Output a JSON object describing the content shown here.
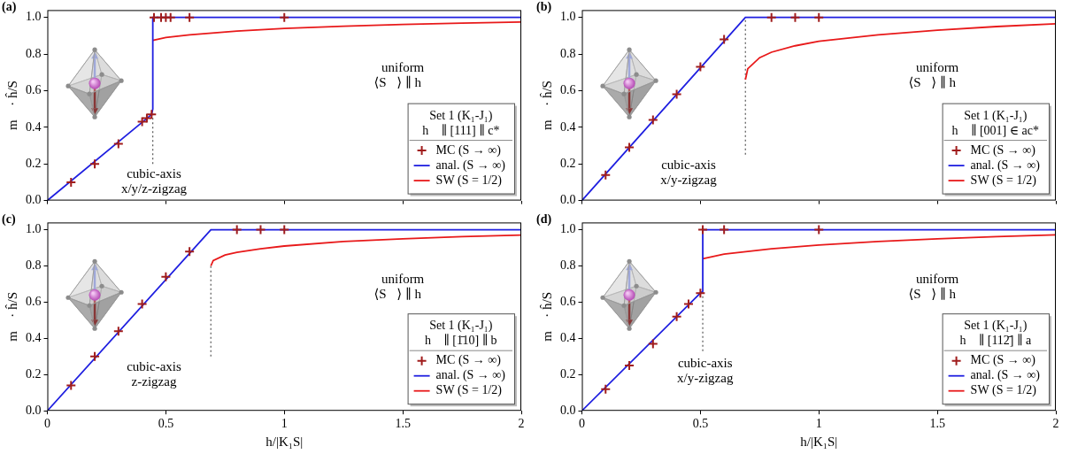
{
  "chart_data": [
    {
      "panel": "(a)",
      "type": "line",
      "ylabel": "m⃗ · ĥ/S",
      "xlim": [
        0,
        2
      ],
      "xticks": [
        0,
        0.5,
        1,
        1.5,
        2
      ],
      "ylim": [
        0,
        1.04
      ],
      "yticks": [
        {
          "value": 0,
          "label": "0.0"
        },
        0.2,
        0.4,
        0.6,
        0.8,
        {
          "value": 1,
          "label": "1.0"
        }
      ],
      "grid": false,
      "tick_labels": "y",
      "legend": "lower right",
      "legend_title": [
        "Set 1 (K₁-J₁)",
        "h⃗ ∥ [111] ∥ c*"
      ],
      "annotations": [
        [
          "uniform",
          "⟨S⃗⟩ ∥ h⃗"
        ],
        [
          "cubic-axis",
          "x/y/z-zigzag"
        ]
      ],
      "series": [
        {
          "name": "MC (S → ∞)",
          "type": "scatter",
          "marker": "cross",
          "color": "#a01c1c",
          "x": [
            0.1,
            0.2,
            0.3,
            0.4,
            0.42,
            0.44,
            0.45,
            0.48,
            0.5,
            0.52,
            0.6,
            1.0
          ],
          "values": [
            0.1,
            0.2,
            0.31,
            0.43,
            0.45,
            0.47,
            1,
            1,
            1,
            1,
            1,
            1
          ]
        },
        {
          "name": "anal. (S → ∞)",
          "type": "line",
          "line_style": "solid",
          "color": "#1f1fe0",
          "x": [
            0,
            0.44,
            0.445,
            0.445,
            2
          ],
          "values": [
            0,
            0.47,
            0.5,
            1,
            1
          ]
        },
        {
          "name": "SW (S = 1/2)",
          "type": "line",
          "line_style": "solid",
          "color": "#e8191a",
          "x": [
            0.445,
            0.5,
            0.6,
            0.8,
            1,
            1.25,
            1.5,
            1.75,
            2
          ],
          "values": [
            0.875,
            0.89,
            0.905,
            0.925,
            0.94,
            0.952,
            0.962,
            0.969,
            0.975
          ]
        },
        {
          "type": "line",
          "line_style": "dotted",
          "color": "#555555",
          "x": [
            0.445,
            0.445
          ],
          "values": [
            0.2,
            0.47
          ]
        }
      ]
    },
    {
      "panel": "(b)",
      "type": "line",
      "ylabel": "m⃗ · ĥ/S",
      "xlim": [
        0,
        2
      ],
      "xticks": [
        0,
        0.5,
        1,
        1.5,
        2
      ],
      "ylim": [
        0,
        1.04
      ],
      "yticks": [
        {
          "value": 0,
          "label": "0.0"
        },
        0.2,
        0.4,
        0.6,
        0.8,
        {
          "value": 1,
          "label": "1.0"
        }
      ],
      "grid": false,
      "tick_labels": "y",
      "legend": "lower right",
      "legend_title": [
        "Set 1 (K₁-J₁)",
        "h⃗ ∥ [001] ∈ ac*"
      ],
      "annotations": [
        [
          "uniform",
          "⟨S⃗⟩ ∥ h⃗"
        ],
        [
          "cubic-axis",
          "x/y-zigzag"
        ]
      ],
      "series": [
        {
          "name": "MC (S → ∞)",
          "type": "scatter",
          "marker": "cross",
          "color": "#a01c1c",
          "x": [
            0.1,
            0.2,
            0.3,
            0.4,
            0.5,
            0.6,
            0.8,
            0.9,
            1.0
          ],
          "values": [
            0.14,
            0.29,
            0.44,
            0.58,
            0.73,
            0.88,
            1,
            1,
            1
          ]
        },
        {
          "name": "anal. (S → ∞)",
          "type": "line",
          "line_style": "solid",
          "color": "#1f1fe0",
          "x": [
            0,
            0.69,
            2
          ],
          "values": [
            0,
            1,
            1
          ]
        },
        {
          "name": "SW (S = 1/2)",
          "type": "line",
          "line_style": "solid",
          "color": "#e8191a",
          "x": [
            0.69,
            0.7,
            0.75,
            0.8,
            0.9,
            1,
            1.25,
            1.5,
            1.75,
            2
          ],
          "values": [
            0.66,
            0.72,
            0.78,
            0.81,
            0.845,
            0.87,
            0.905,
            0.93,
            0.95,
            0.965
          ]
        },
        {
          "type": "line",
          "line_style": "dotted",
          "color": "#555555",
          "x": [
            0.69,
            0.69
          ],
          "values": [
            0.25,
            1
          ]
        }
      ]
    },
    {
      "panel": "(c)",
      "type": "line",
      "xlabel": "h/|K₁S|",
      "ylabel": "m⃗ · ĥ/S",
      "xlim": [
        0,
        2
      ],
      "xticks": [
        0,
        0.5,
        1,
        1.5,
        2
      ],
      "ylim": [
        0,
        1.04
      ],
      "yticks": [
        {
          "value": 0,
          "label": "0.0"
        },
        0.2,
        0.4,
        0.6,
        0.8,
        {
          "value": 1,
          "label": "1.0"
        }
      ],
      "grid": false,
      "legend": "lower right",
      "legend_title": [
        "Set 1 (K₁-J₁)",
        "h⃗ ∥ [1̄10] ∥ b"
      ],
      "annotations": [
        [
          "uniform",
          "⟨S⃗⟩ ∥ h⃗"
        ],
        [
          "cubic-axis",
          "z-zigzag"
        ]
      ],
      "series": [
        {
          "name": "MC (S → ∞)",
          "type": "scatter",
          "marker": "cross",
          "color": "#a01c1c",
          "x": [
            0.1,
            0.2,
            0.3,
            0.4,
            0.5,
            0.6,
            0.8,
            0.9,
            1.0
          ],
          "values": [
            0.14,
            0.3,
            0.44,
            0.59,
            0.74,
            0.88,
            1,
            1,
            1
          ]
        },
        {
          "name": "anal. (S → ∞)",
          "type": "line",
          "line_style": "solid",
          "color": "#1f1fe0",
          "x": [
            0,
            0.69,
            2
          ],
          "values": [
            0,
            1,
            1
          ]
        },
        {
          "name": "SW (S = 1/2)",
          "type": "line",
          "line_style": "solid",
          "color": "#e8191a",
          "x": [
            0.69,
            0.7,
            0.75,
            0.8,
            0.9,
            1,
            1.25,
            1.5,
            1.75,
            2
          ],
          "values": [
            0.8,
            0.83,
            0.86,
            0.875,
            0.895,
            0.91,
            0.935,
            0.95,
            0.962,
            0.97
          ]
        },
        {
          "type": "line",
          "line_style": "dotted",
          "color": "#555555",
          "x": [
            0.69,
            0.69
          ],
          "values": [
            0.3,
            0.8
          ]
        }
      ]
    },
    {
      "panel": "(d)",
      "type": "line",
      "xlabel": "h/|K₁S|",
      "ylabel": "m⃗ · ĥ/S",
      "xlim": [
        0,
        2
      ],
      "xticks": [
        0,
        0.5,
        1,
        1.5,
        2
      ],
      "ylim": [
        0,
        1.04
      ],
      "yticks": [
        {
          "value": 0,
          "label": "0.0"
        },
        0.2,
        0.4,
        0.6,
        0.8,
        {
          "value": 1,
          "label": "1.0"
        }
      ],
      "grid": false,
      "legend": "lower right",
      "legend_title": [
        "Set 1 (K₁-J₁)",
        "h⃗ ∥ [112̄] ∥ a"
      ],
      "annotations": [
        [
          "uniform",
          "⟨S⃗⟩ ∥ h⃗"
        ],
        [
          "cubic-axis",
          "x/y-zigzag"
        ]
      ],
      "series": [
        {
          "name": "MC (S → ∞)",
          "type": "scatter",
          "marker": "cross",
          "color": "#a01c1c",
          "x": [
            0.1,
            0.2,
            0.3,
            0.4,
            0.45,
            0.5,
            0.51,
            0.6,
            1.0
          ],
          "values": [
            0.12,
            0.25,
            0.37,
            0.52,
            0.59,
            0.65,
            1,
            1,
            1
          ]
        },
        {
          "name": "anal. (S → ∞)",
          "type": "line",
          "line_style": "solid",
          "color": "#1f1fe0",
          "x": [
            0,
            0.5,
            0.51,
            0.51,
            2
          ],
          "values": [
            0,
            0.65,
            0.66,
            1,
            1
          ]
        },
        {
          "name": "SW (S = 1/2)",
          "type": "line",
          "line_style": "solid",
          "color": "#e8191a",
          "x": [
            0.51,
            0.6,
            0.8,
            1,
            1.25,
            1.5,
            1.75,
            2
          ],
          "values": [
            0.84,
            0.865,
            0.895,
            0.915,
            0.935,
            0.95,
            0.962,
            0.972
          ]
        },
        {
          "type": "line",
          "line_style": "dotted",
          "color": "#555555",
          "x": [
            0.51,
            0.51
          ],
          "values": [
            0.33,
            0.66
          ]
        }
      ]
    }
  ]
}
